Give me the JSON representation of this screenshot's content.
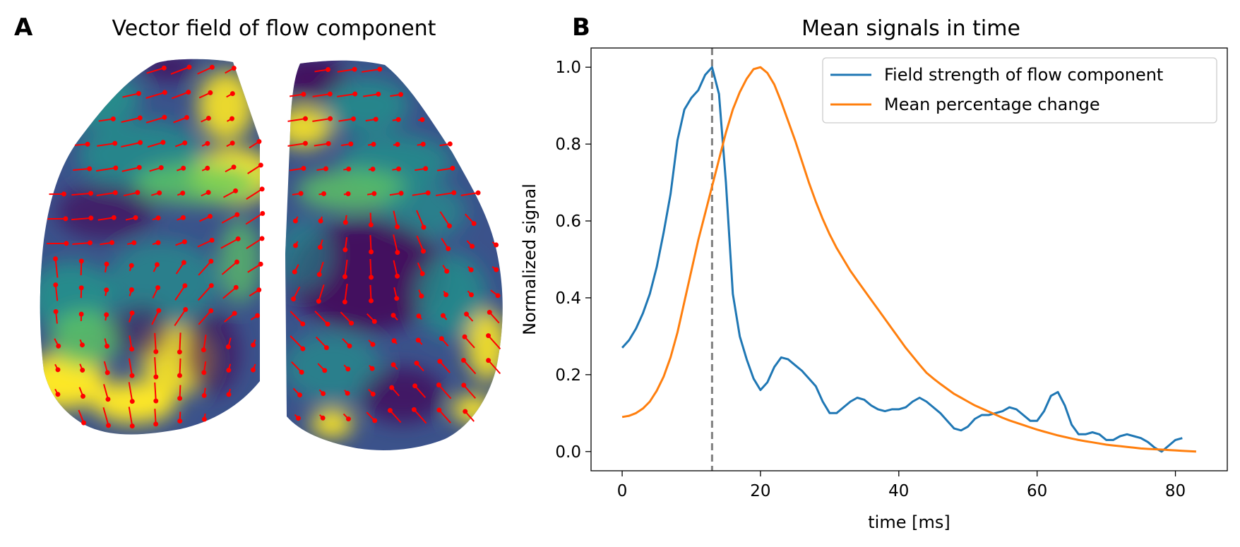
{
  "panels": {
    "a": {
      "letter": "A",
      "title": "Vector field of flow component"
    },
    "b": {
      "letter": "B",
      "title": "Mean signals in time"
    }
  },
  "colors": {
    "arrow": "#ff0000",
    "field_low": "#440154",
    "field_mid": "#3b528b",
    "field_teal": "#21918c",
    "field_green": "#5ec962",
    "field_high": "#fde725",
    "series1": "#1f77b4",
    "series2": "#ff7f0e",
    "marker_line": "#808080"
  },
  "chart_data": [
    {
      "type": "heatmap",
      "title": "Vector field of flow component",
      "colormap": "viridis",
      "overlay": "vector arrows (red)"
    },
    {
      "type": "line",
      "title": "Mean signals in time",
      "xlabel": "time [ms]",
      "ylabel": "Normalized signal",
      "xlim": [
        -4.5,
        87.5
      ],
      "ylim": [
        -0.05,
        1.05
      ],
      "xticks": [
        0,
        20,
        40,
        60,
        80
      ],
      "yticks": [
        0.0,
        0.2,
        0.4,
        0.6,
        0.8,
        1.0
      ],
      "xtick_labels": [
        "0",
        "20",
        "40",
        "60",
        "80"
      ],
      "ytick_labels": [
        "0.0",
        "0.2",
        "0.4",
        "0.6",
        "0.8",
        "1.0"
      ],
      "legend_position": "top-right",
      "vline_x": 13,
      "series": [
        {
          "name": "Field strength of flow component",
          "color": "#1f77b4",
          "x": [
            0,
            1,
            2,
            3,
            4,
            5,
            6,
            7,
            8,
            9,
            10,
            11,
            12,
            13,
            14,
            15,
            16,
            17,
            18,
            19,
            20,
            21,
            22,
            23,
            24,
            25,
            26,
            27,
            28,
            29,
            30,
            31,
            32,
            33,
            34,
            35,
            36,
            37,
            38,
            39,
            40,
            41,
            42,
            43,
            44,
            45,
            46,
            47,
            48,
            49,
            50,
            51,
            52,
            53,
            54,
            55,
            56,
            57,
            58,
            59,
            60,
            61,
            62,
            63,
            64,
            65,
            66,
            67,
            68,
            69,
            70,
            71,
            72,
            73,
            74,
            75,
            76,
            77,
            78,
            79,
            80,
            81
          ],
          "values": [
            0.27,
            0.29,
            0.32,
            0.36,
            0.41,
            0.48,
            0.57,
            0.67,
            0.81,
            0.89,
            0.92,
            0.94,
            0.98,
            1.0,
            0.93,
            0.7,
            0.41,
            0.3,
            0.24,
            0.19,
            0.16,
            0.18,
            0.22,
            0.245,
            0.24,
            0.225,
            0.21,
            0.19,
            0.17,
            0.13,
            0.1,
            0.1,
            0.115,
            0.13,
            0.14,
            0.135,
            0.12,
            0.11,
            0.105,
            0.11,
            0.11,
            0.115,
            0.13,
            0.14,
            0.13,
            0.115,
            0.1,
            0.08,
            0.06,
            0.055,
            0.065,
            0.085,
            0.095,
            0.095,
            0.1,
            0.105,
            0.115,
            0.11,
            0.095,
            0.08,
            0.08,
            0.105,
            0.145,
            0.155,
            0.12,
            0.07,
            0.045,
            0.045,
            0.05,
            0.045,
            0.03,
            0.03,
            0.04,
            0.045,
            0.04,
            0.035,
            0.025,
            0.01,
            0.0,
            0.015,
            0.03,
            0.035
          ]
        },
        {
          "name": "Mean percentage change",
          "color": "#ff7f0e",
          "x": [
            0,
            1,
            2,
            3,
            4,
            5,
            6,
            7,
            8,
            9,
            10,
            11,
            12,
            13,
            14,
            15,
            16,
            17,
            18,
            19,
            20,
            21,
            22,
            23,
            24,
            25,
            26,
            27,
            28,
            29,
            30,
            31,
            32,
            33,
            34,
            35,
            36,
            37,
            38,
            39,
            40,
            41,
            42,
            43,
            44,
            45,
            46,
            47,
            48,
            49,
            50,
            51,
            52,
            53,
            54,
            55,
            56,
            57,
            58,
            59,
            60,
            61,
            62,
            63,
            64,
            65,
            66,
            67,
            68,
            69,
            70,
            71,
            72,
            73,
            74,
            75,
            76,
            77,
            78,
            79,
            80,
            81,
            82,
            83
          ],
          "values": [
            0.09,
            0.093,
            0.1,
            0.112,
            0.13,
            0.158,
            0.195,
            0.245,
            0.31,
            0.39,
            0.47,
            0.55,
            0.62,
            0.69,
            0.76,
            0.83,
            0.89,
            0.935,
            0.97,
            0.995,
            1.0,
            0.985,
            0.955,
            0.91,
            0.86,
            0.81,
            0.755,
            0.7,
            0.65,
            0.605,
            0.565,
            0.53,
            0.5,
            0.47,
            0.445,
            0.42,
            0.395,
            0.37,
            0.345,
            0.32,
            0.295,
            0.27,
            0.248,
            0.226,
            0.205,
            0.19,
            0.176,
            0.163,
            0.15,
            0.14,
            0.13,
            0.12,
            0.112,
            0.104,
            0.096,
            0.088,
            0.081,
            0.075,
            0.069,
            0.063,
            0.057,
            0.052,
            0.047,
            0.042,
            0.038,
            0.034,
            0.03,
            0.027,
            0.024,
            0.021,
            0.018,
            0.016,
            0.014,
            0.012,
            0.01,
            0.008,
            0.007,
            0.006,
            0.005,
            0.004,
            0.003,
            0.002,
            0.001,
            0.0
          ]
        }
      ]
    }
  ]
}
